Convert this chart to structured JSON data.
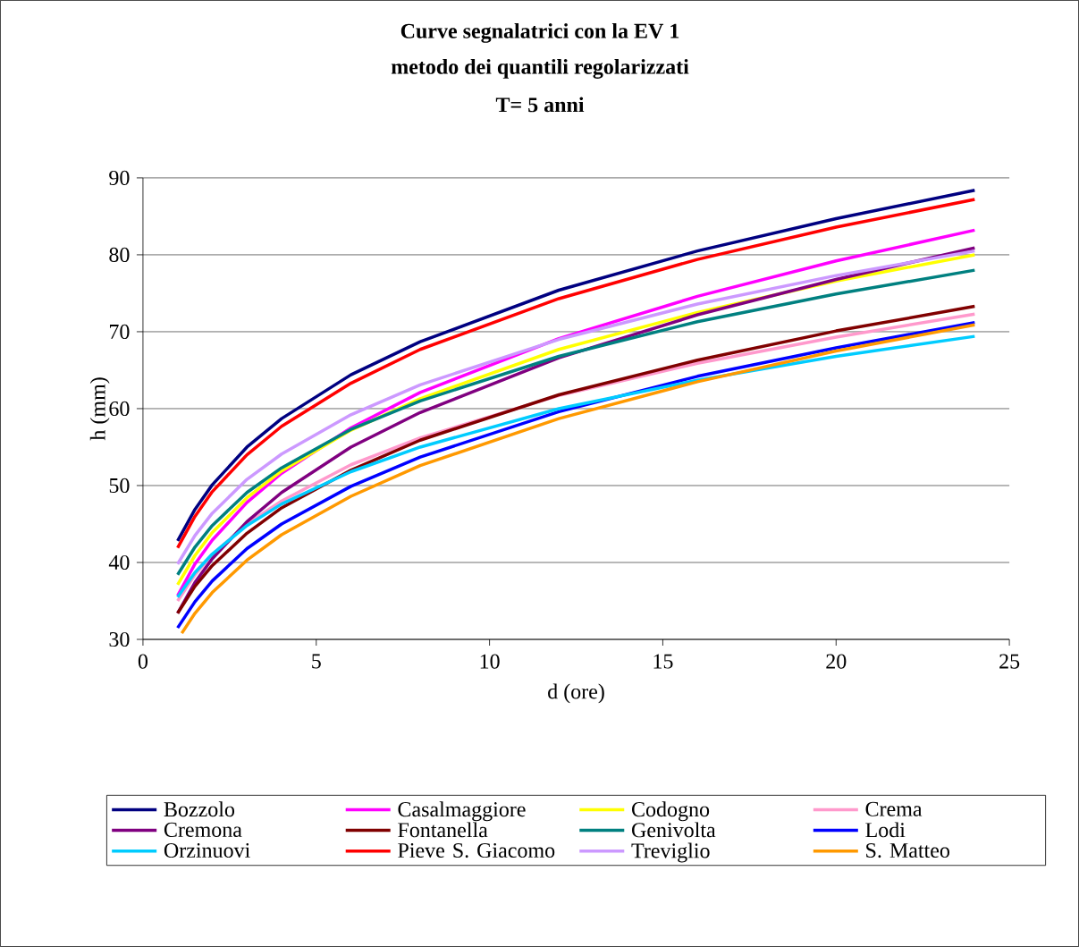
{
  "chart_data": {
    "type": "line",
    "title": "Curve segnalatrici con la EV 1",
    "subtitle": "metodo dei quantili regolarizzati",
    "annotations": [
      "T= 5 anni"
    ],
    "xlabel": "d (ore)",
    "ylabel": "h (mm)",
    "x": [
      1,
      1.5,
      2,
      3,
      4,
      6,
      8,
      12,
      16,
      20,
      24
    ],
    "xlim": [
      0,
      25
    ],
    "xticks": [
      0,
      5,
      10,
      15,
      20,
      25
    ],
    "ylim": [
      30,
      90
    ],
    "yticks": [
      30,
      40,
      50,
      60,
      70,
      80,
      90
    ],
    "grid": "y",
    "legend": "bottom",
    "marker": "none",
    "line_style": "solid",
    "series": [
      {
        "name": "Bozzolo",
        "color": "#000080",
        "values": [
          42.8,
          46.9,
          50.1,
          55.0,
          58.7,
          64.4,
          68.7,
          75.4,
          80.5,
          84.7,
          88.4
        ]
      },
      {
        "name": "Casalmaggiore",
        "color": "#ff00ff",
        "values": [
          35.7,
          39.8,
          42.9,
          47.8,
          51.6,
          57.5,
          62.1,
          69.1,
          74.6,
          79.2,
          83.2
        ]
      },
      {
        "name": "Codogno",
        "color": "#ffff00",
        "values": [
          37.1,
          40.9,
          43.9,
          48.4,
          51.9,
          57.2,
          61.3,
          67.7,
          72.5,
          76.6,
          80.0
        ]
      },
      {
        "name": "Crema",
        "color": "#ff99cc",
        "values": [
          35.0,
          38.4,
          41.0,
          45.0,
          48.0,
          52.7,
          56.2,
          61.7,
          65.9,
          69.3,
          72.3
        ]
      },
      {
        "name": "Cremona",
        "color": "#800080",
        "values": [
          33.4,
          37.4,
          40.5,
          45.3,
          49.1,
          55.0,
          59.5,
          66.6,
          72.2,
          76.8,
          80.9
        ]
      },
      {
        "name": "Fontanella",
        "color": "#800000",
        "values": [
          33.4,
          36.9,
          39.6,
          43.8,
          47.1,
          52.0,
          55.9,
          61.8,
          66.3,
          70.1,
          73.3
        ]
      },
      {
        "name": "Genivolta",
        "color": "#008080",
        "values": [
          38.4,
          42.0,
          44.8,
          49.1,
          52.3,
          57.3,
          61.0,
          66.8,
          71.3,
          74.9,
          78.0
        ]
      },
      {
        "name": "Lodi",
        "color": "#0000ff",
        "values": [
          31.5,
          34.9,
          37.6,
          41.8,
          45.0,
          49.9,
          53.7,
          59.6,
          64.2,
          67.9,
          71.2
        ]
      },
      {
        "name": "Orzinuovi",
        "color": "#00ccff",
        "values": [
          35.5,
          38.7,
          41.1,
          44.8,
          47.6,
          51.8,
          55.0,
          60.0,
          63.7,
          66.8,
          69.4
        ]
      },
      {
        "name": "Pieve S. Giacomo",
        "color": "#ff0000",
        "values": [
          41.9,
          46.0,
          49.2,
          54.0,
          57.7,
          63.3,
          67.7,
          74.3,
          79.4,
          83.6,
          87.2
        ]
      },
      {
        "name": "Treviglio",
        "color": "#cc99ff",
        "values": [
          39.8,
          43.5,
          46.4,
          50.8,
          54.1,
          59.2,
          63.1,
          69.0,
          73.6,
          77.3,
          80.5
        ]
      },
      {
        "name": "S. Matteo",
        "color": "#ff9900",
        "x": [
          1.12,
          1.5,
          2,
          3,
          4,
          6,
          8,
          12,
          16,
          20,
          24
        ],
        "values": [
          30.8,
          33.4,
          36.1,
          40.3,
          43.6,
          48.6,
          52.6,
          58.7,
          63.5,
          67.5,
          70.9
        ]
      }
    ]
  }
}
